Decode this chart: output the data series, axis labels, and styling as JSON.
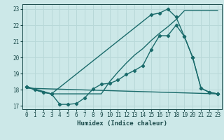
{
  "xlabel": "Humidex (Indice chaleur)",
  "bg_color": "#cce8e8",
  "grid_color": "#b8d8d8",
  "line_color": "#1a6b6b",
  "xlim": [
    -0.5,
    23.5
  ],
  "ylim": [
    16.8,
    23.3
  ],
  "yticks": [
    17,
    18,
    19,
    20,
    21,
    22,
    23
  ],
  "xticks": [
    0,
    1,
    2,
    3,
    4,
    5,
    6,
    7,
    8,
    9,
    10,
    11,
    12,
    13,
    14,
    15,
    16,
    17,
    18,
    19,
    20,
    21,
    22,
    23
  ],
  "series1_x": [
    0,
    1,
    2,
    3,
    4,
    5,
    6,
    7,
    8,
    9,
    10,
    11,
    12,
    13,
    14,
    15,
    16,
    17,
    18,
    19,
    20,
    21,
    22,
    23
  ],
  "series1_y": [
    18.2,
    18.0,
    17.85,
    17.75,
    17.1,
    17.1,
    17.15,
    17.5,
    18.05,
    18.35,
    18.4,
    18.6,
    18.95,
    19.2,
    19.5,
    20.5,
    21.35,
    21.35,
    22.0,
    21.3,
    20.0,
    18.1,
    17.85,
    17.75
  ],
  "series2_x": [
    0,
    23
  ],
  "series2_y": [
    18.1,
    17.75
  ],
  "series3_x": [
    0,
    1,
    2,
    3,
    4,
    5,
    6,
    7,
    8,
    9,
    10,
    11,
    12,
    13,
    14,
    15,
    16,
    17,
    18,
    19,
    20,
    21,
    22,
    23
  ],
  "series3_y": [
    18.2,
    18.0,
    17.85,
    17.75,
    17.75,
    17.75,
    17.75,
    17.75,
    17.75,
    17.75,
    18.5,
    19.1,
    19.65,
    20.15,
    20.55,
    21.05,
    21.5,
    21.9,
    22.35,
    22.9,
    22.9,
    22.9,
    22.9,
    22.9
  ],
  "series4_x": [
    0,
    3,
    15,
    16,
    17,
    18,
    19,
    20,
    21,
    22,
    23
  ],
  "series4_y": [
    18.2,
    17.75,
    22.65,
    22.75,
    23.0,
    22.5,
    21.3,
    20.0,
    18.1,
    17.85,
    17.75
  ]
}
